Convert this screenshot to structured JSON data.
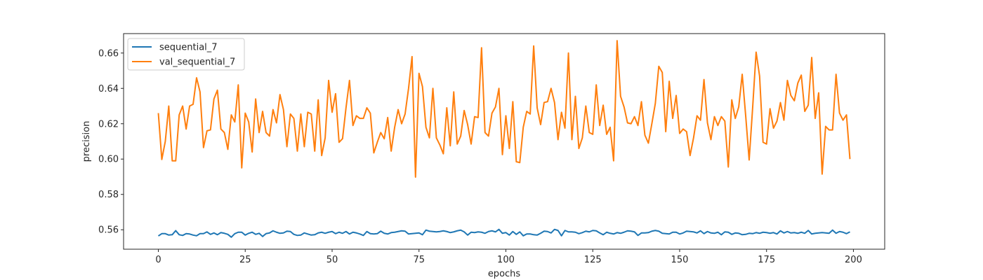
{
  "chart_data": {
    "type": "line",
    "title": "",
    "xlabel": "epochs",
    "ylabel": "precision",
    "xlim": [
      -10,
      209
    ],
    "ylim": [
      0.549,
      0.671
    ],
    "xticks": [
      0,
      25,
      50,
      75,
      100,
      125,
      150,
      175,
      200
    ],
    "yticks": [
      0.56,
      0.58,
      0.6,
      0.62,
      0.64,
      0.66
    ],
    "ytick_labels": [
      "0.56",
      "0.58",
      "0.60",
      "0.62",
      "0.64",
      "0.66"
    ],
    "grid": false,
    "legend_position": "top-left",
    "series": [
      {
        "name": "sequential_7",
        "color": "#1f77b4",
        "values": [
          0.5565,
          0.5578,
          0.5578,
          0.557,
          0.5572,
          0.5595,
          0.5572,
          0.5568,
          0.5578,
          0.5576,
          0.557,
          0.5566,
          0.5578,
          0.5578,
          0.5588,
          0.5574,
          0.5582,
          0.5572,
          0.5584,
          0.558,
          0.5574,
          0.5558,
          0.5578,
          0.5586,
          0.5586,
          0.557,
          0.558,
          0.5586,
          0.5574,
          0.558,
          0.5562,
          0.5578,
          0.5582,
          0.5594,
          0.5586,
          0.558,
          0.5582,
          0.5592,
          0.559,
          0.5574,
          0.5568,
          0.557,
          0.5582,
          0.5576,
          0.557,
          0.5572,
          0.5582,
          0.5586,
          0.558,
          0.5586,
          0.559,
          0.5578,
          0.5586,
          0.558,
          0.559,
          0.5576,
          0.5586,
          0.5582,
          0.5576,
          0.5568,
          0.559,
          0.5578,
          0.5576,
          0.5578,
          0.5592,
          0.558,
          0.5576,
          0.5584,
          0.5586,
          0.559,
          0.5594,
          0.5592,
          0.5576,
          0.5578,
          0.558,
          0.5582,
          0.5572,
          0.5598,
          0.5592,
          0.559,
          0.5588,
          0.559,
          0.5594,
          0.559,
          0.5584,
          0.5588,
          0.5594,
          0.5598,
          0.5588,
          0.557,
          0.5586,
          0.5584,
          0.5588,
          0.5586,
          0.558,
          0.559,
          0.5594,
          0.5588,
          0.5602,
          0.558,
          0.5584,
          0.557,
          0.559,
          0.5574,
          0.5588,
          0.5566,
          0.5576,
          0.5576,
          0.5572,
          0.557,
          0.558,
          0.5592,
          0.559,
          0.5582,
          0.5602,
          0.5596,
          0.5566,
          0.5596,
          0.5588,
          0.5588,
          0.5586,
          0.5578,
          0.5584,
          0.5592,
          0.5588,
          0.5596,
          0.5594,
          0.5582,
          0.5572,
          0.5586,
          0.558,
          0.5576,
          0.5584,
          0.558,
          0.5586,
          0.5594,
          0.5592,
          0.5588,
          0.5568,
          0.5582,
          0.5582,
          0.5584,
          0.5592,
          0.5596,
          0.5592,
          0.558,
          0.5578,
          0.5576,
          0.5586,
          0.5586,
          0.5576,
          0.5582,
          0.5592,
          0.559,
          0.5588,
          0.5582,
          0.5594,
          0.5578,
          0.559,
          0.5582,
          0.558,
          0.5586,
          0.5572,
          0.5588,
          0.5586,
          0.5574,
          0.5582,
          0.558,
          0.5572,
          0.5574,
          0.558,
          0.5578,
          0.5584,
          0.558,
          0.5586,
          0.5584,
          0.558,
          0.5584,
          0.5576,
          0.5594,
          0.5582,
          0.559,
          0.5582,
          0.5584,
          0.558,
          0.5586,
          0.558,
          0.5596,
          0.5576,
          0.558,
          0.5582,
          0.5584,
          0.5582,
          0.558,
          0.5598,
          0.558,
          0.559,
          0.5586,
          0.5578,
          0.5588
        ]
      },
      {
        "name": "val_sequential_7",
        "color": "#ff7f0e",
        "values": [
          0.626,
          0.5998,
          0.61,
          0.63,
          0.599,
          0.599,
          0.625,
          0.63,
          0.617,
          0.63,
          0.631,
          0.646,
          0.638,
          0.6065,
          0.616,
          0.6165,
          0.634,
          0.639,
          0.617,
          0.615,
          0.6055,
          0.625,
          0.621,
          0.642,
          0.595,
          0.626,
          0.621,
          0.604,
          0.634,
          0.615,
          0.627,
          0.615,
          0.613,
          0.628,
          0.6205,
          0.6365,
          0.628,
          0.607,
          0.6255,
          0.623,
          0.6045,
          0.6255,
          0.607,
          0.6265,
          0.6255,
          0.6045,
          0.6335,
          0.602,
          0.612,
          0.6445,
          0.6265,
          0.637,
          0.6095,
          0.6115,
          0.629,
          0.6445,
          0.619,
          0.6245,
          0.623,
          0.623,
          0.629,
          0.626,
          0.6035,
          0.6095,
          0.615,
          0.6115,
          0.6235,
          0.6045,
          0.618,
          0.628,
          0.62,
          0.6255,
          0.64,
          0.658,
          0.5898,
          0.6485,
          0.641,
          0.618,
          0.612,
          0.64,
          0.612,
          0.608,
          0.603,
          0.629,
          0.6075,
          0.638,
          0.6085,
          0.613,
          0.6275,
          0.6195,
          0.6085,
          0.624,
          0.6235,
          0.663,
          0.615,
          0.613,
          0.626,
          0.6295,
          0.64,
          0.6025,
          0.6245,
          0.606,
          0.6325,
          0.5985,
          0.598,
          0.618,
          0.627,
          0.6255,
          0.664,
          0.629,
          0.6195,
          0.632,
          0.6325,
          0.64,
          0.632,
          0.611,
          0.6265,
          0.6175,
          0.66,
          0.611,
          0.6355,
          0.606,
          0.612,
          0.63,
          0.615,
          0.614,
          0.642,
          0.619,
          0.6305,
          0.614,
          0.618,
          0.599,
          0.667,
          0.6355,
          0.6295,
          0.6205,
          0.62,
          0.624,
          0.619,
          0.6325,
          0.6135,
          0.609,
          0.62,
          0.6315,
          0.6525,
          0.649,
          0.6155,
          0.644,
          0.623,
          0.636,
          0.6145,
          0.617,
          0.6155,
          0.602,
          0.612,
          0.6245,
          0.622,
          0.645,
          0.6205,
          0.611,
          0.624,
          0.619,
          0.624,
          0.6215,
          0.5955,
          0.6335,
          0.623,
          0.6295,
          0.648,
          0.6245,
          0.5995,
          0.629,
          0.6605,
          0.647,
          0.6095,
          0.6085,
          0.6285,
          0.6175,
          0.6215,
          0.632,
          0.622,
          0.6445,
          0.636,
          0.633,
          0.643,
          0.6475,
          0.627,
          0.6305,
          0.6575,
          0.623,
          0.6375,
          0.5915,
          0.6185,
          0.6165,
          0.6165,
          0.648,
          0.626,
          0.622,
          0.625,
          0.6
        ]
      }
    ]
  }
}
